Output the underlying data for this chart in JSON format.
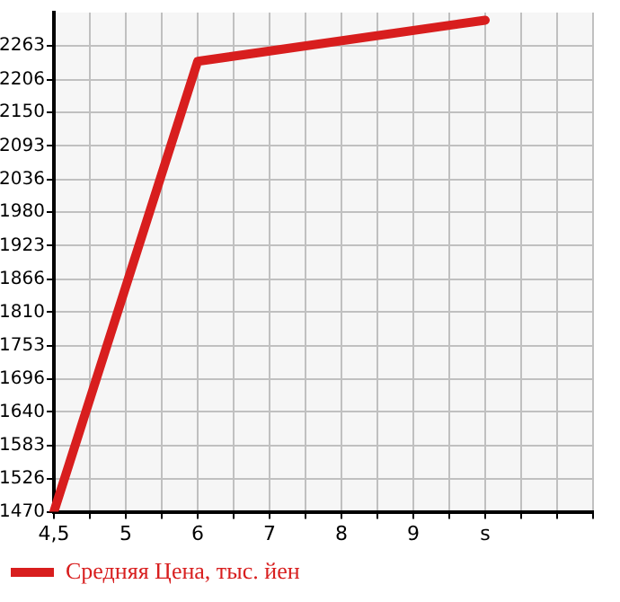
{
  "chart_data": {
    "type": "line",
    "categories": [
      "4,5",
      null,
      "5",
      null,
      "6",
      null,
      "7",
      null,
      "8",
      null,
      "9",
      null,
      "s",
      null,
      null,
      null
    ],
    "series": [
      {
        "name": "Средняя Цена, тыс. йен",
        "color": "#d81e1e",
        "values": [
          1470,
          null,
          null,
          null,
          2237,
          null,
          null,
          null,
          null,
          null,
          null,
          null,
          2307,
          null,
          null,
          null
        ]
      }
    ],
    "ylim": [
      1470,
      2320
    ],
    "yticks": [
      1470,
      1526,
      1583,
      1640,
      1696,
      1753,
      1810,
      1866,
      1923,
      1980,
      2036,
      2093,
      2150,
      2206,
      2263
    ],
    "grid": true,
    "legend": "bottom",
    "marker": "none",
    "line_style": "solid"
  }
}
